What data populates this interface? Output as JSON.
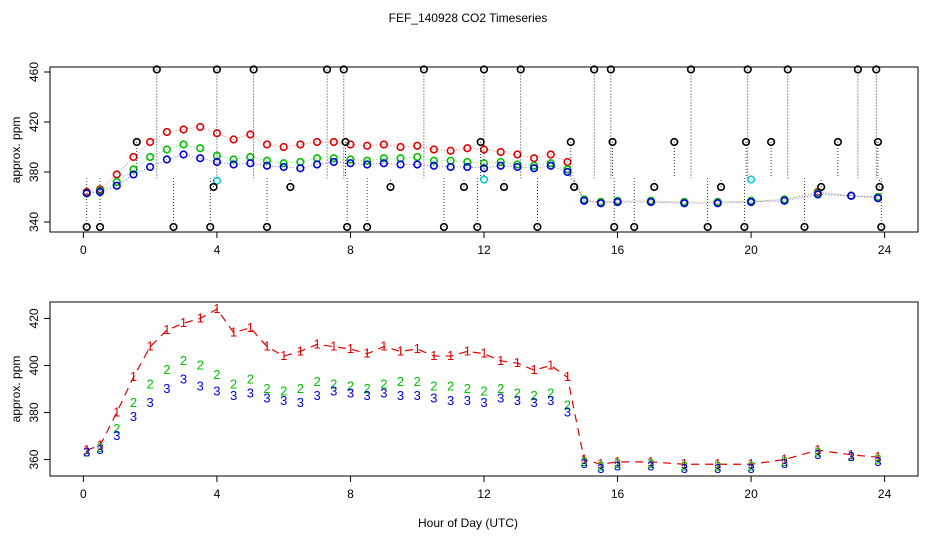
{
  "title": "FEF_140928  CO2 Timeseries",
  "xlabel": "Hour of Day (UTC)",
  "colors": {
    "black": "#000000",
    "red": "#e00000",
    "green": "#00c000",
    "blue": "#0000e0",
    "cyan": "#00d0d0",
    "grid_dots": "#000000"
  },
  "chart_data": [
    {
      "type": "scatter",
      "panel": "top",
      "ylabel": "approx. ppm",
      "xlim": [
        -1,
        25
      ],
      "ylim": [
        332,
        464
      ],
      "xticks": [
        0,
        4,
        8,
        12,
        16,
        20,
        24
      ],
      "yticks": [
        340,
        380,
        420,
        460
      ],
      "series": [
        {
          "color": "red",
          "x": [
            0.1,
            0.5,
            1.0,
            1.5,
            2.0,
            2.5,
            3.0,
            3.5,
            4.0,
            4.5,
            5.0,
            5.5,
            6.0,
            6.5,
            7.0,
            7.5,
            8.0,
            8.5,
            9.0,
            9.5,
            10.0,
            10.5,
            11.0,
            11.5,
            12.0,
            12.5,
            13.0,
            13.5,
            14.0,
            14.5,
            15.0,
            15.5,
            16.0,
            17.0,
            18.0,
            19.0,
            20.0,
            21.0,
            22.0,
            23.0,
            23.8
          ],
          "values": [
            364,
            366,
            378,
            392,
            404,
            412,
            414,
            416,
            411,
            406,
            410,
            402,
            400,
            402,
            404,
            404,
            402,
            401,
            402,
            400,
            401,
            398,
            397,
            399,
            398,
            396,
            394,
            391,
            394,
            388,
            357,
            356,
            356,
            356,
            356,
            356,
            356,
            358,
            364,
            361,
            360
          ]
        },
        {
          "color": "green",
          "x": [
            0.1,
            0.5,
            1.0,
            1.5,
            2.0,
            2.5,
            3.0,
            3.5,
            4.0,
            4.5,
            5.0,
            5.5,
            6.0,
            6.5,
            7.0,
            7.5,
            8.0,
            8.5,
            9.0,
            9.5,
            10.0,
            10.5,
            11.0,
            11.5,
            12.0,
            12.5,
            13.0,
            13.5,
            14.0,
            14.5,
            15.0,
            15.5,
            16.0,
            17.0,
            18.0,
            19.0,
            20.0,
            21.0,
            22.0,
            23.0,
            23.8
          ],
          "values": [
            363,
            365,
            372,
            382,
            392,
            398,
            402,
            399,
            393,
            390,
            392,
            389,
            387,
            388,
            391,
            391,
            390,
            389,
            391,
            391,
            392,
            389,
            389,
            388,
            387,
            388,
            386,
            385,
            387,
            382,
            358,
            356,
            357,
            357,
            356,
            356,
            357,
            358,
            363,
            361,
            360
          ]
        },
        {
          "color": "blue",
          "x": [
            0.1,
            0.5,
            1.0,
            1.5,
            2.0,
            2.5,
            3.0,
            3.5,
            4.0,
            4.5,
            5.0,
            5.5,
            6.0,
            6.5,
            7.0,
            7.5,
            8.0,
            8.5,
            9.0,
            9.5,
            10.0,
            10.5,
            11.0,
            11.5,
            12.0,
            12.5,
            13.0,
            13.5,
            14.0,
            14.5,
            15.0,
            15.5,
            16.0,
            17.0,
            18.0,
            19.0,
            20.0,
            21.0,
            22.0,
            23.0,
            23.8
          ],
          "values": [
            363,
            364,
            369,
            378,
            384,
            390,
            394,
            391,
            388,
            386,
            387,
            385,
            384,
            383,
            386,
            388,
            387,
            386,
            387,
            386,
            386,
            385,
            384,
            384,
            383,
            385,
            384,
            383,
            385,
            380,
            357,
            355,
            356,
            356,
            355,
            355,
            356,
            357,
            362,
            361,
            359
          ]
        },
        {
          "color": "cyan",
          "x": [
            4.0,
            12.0,
            20.0
          ],
          "values": [
            373,
            374,
            374
          ]
        },
        {
          "color": "black",
          "x": [
            0.1,
            0.5,
            1.6,
            2.2,
            2.7,
            3.8,
            3.9,
            4.0,
            5.1,
            5.5,
            6.2,
            7.3,
            7.8,
            7.85,
            7.9,
            8.5,
            9.2,
            10.2,
            10.8,
            11.4,
            11.8,
            11.9,
            12.0,
            12.6,
            13.1,
            13.6,
            14.6,
            14.7,
            15.3,
            15.8,
            15.85,
            15.9,
            16.5,
            17.1,
            17.7,
            18.2,
            18.7,
            19.1,
            19.8,
            19.85,
            19.9,
            20.6,
            21.1,
            21.6,
            22.1,
            22.6,
            23.2,
            23.75,
            23.8,
            23.85,
            23.9
          ],
          "values": [
            336,
            336,
            404,
            462,
            336,
            336,
            368,
            462,
            462,
            336,
            368,
            462,
            462,
            404,
            336,
            336,
            368,
            462,
            336,
            368,
            336,
            404,
            462,
            368,
            462,
            336,
            404,
            368,
            462,
            462,
            404,
            336,
            336,
            368,
            404,
            462,
            336,
            368,
            336,
            404,
            462,
            404,
            462,
            336,
            368,
            404,
            462,
            462,
            404,
            368,
            336
          ]
        }
      ]
    },
    {
      "type": "scatter",
      "panel": "bottom",
      "ylabel": "approx. ppm",
      "xlim": [
        -1,
        25
      ],
      "ylim": [
        353,
        427
      ],
      "xticks": [
        0,
        4,
        8,
        12,
        16,
        20,
        24
      ],
      "yticks": [
        360,
        380,
        400,
        420
      ],
      "series": [
        {
          "name": "1",
          "color": "red",
          "x": [
            0.1,
            0.5,
            1.0,
            1.5,
            2.0,
            2.5,
            3.0,
            3.5,
            4.0,
            4.5,
            5.0,
            5.5,
            6.0,
            6.5,
            7.0,
            7.5,
            8.0,
            8.5,
            9.0,
            9.5,
            10.0,
            10.5,
            11.0,
            11.5,
            12.0,
            12.5,
            13.0,
            13.5,
            14.0,
            14.5,
            15.0,
            15.5,
            16.0,
            17.0,
            18.0,
            19.0,
            20.0,
            21.0,
            22.0,
            23.0,
            23.8
          ],
          "values": [
            364,
            366,
            380,
            395,
            408,
            415,
            418,
            420,
            424,
            414,
            416,
            408,
            404,
            406,
            409,
            408,
            407,
            405,
            408,
            406,
            407,
            404,
            404,
            406,
            405,
            402,
            401,
            398,
            400,
            395,
            360,
            358,
            359,
            359,
            358,
            358,
            358,
            360,
            364,
            362,
            361
          ]
        },
        {
          "name": "2",
          "color": "green",
          "x": [
            0.1,
            0.5,
            1.0,
            1.5,
            2.0,
            2.5,
            3.0,
            3.5,
            4.0,
            4.5,
            5.0,
            5.5,
            6.0,
            6.5,
            7.0,
            7.5,
            8.0,
            8.5,
            9.0,
            9.5,
            10.0,
            10.5,
            11.0,
            11.5,
            12.0,
            12.5,
            13.0,
            13.5,
            14.0,
            14.5,
            15.0,
            15.5,
            16.0,
            17.0,
            18.0,
            19.0,
            20.0,
            21.0,
            22.0,
            23.0,
            23.8
          ],
          "values": [
            363,
            365,
            373,
            384,
            392,
            398,
            402,
            400,
            396,
            392,
            394,
            390,
            389,
            390,
            393,
            392,
            391,
            390,
            392,
            393,
            393,
            391,
            391,
            390,
            389,
            390,
            388,
            387,
            388,
            383,
            359,
            357,
            358,
            358,
            357,
            357,
            357,
            359,
            363,
            361,
            360
          ]
        },
        {
          "name": "3",
          "color": "blue",
          "x": [
            0.1,
            0.5,
            1.0,
            1.5,
            2.0,
            2.5,
            3.0,
            3.5,
            4.0,
            4.5,
            5.0,
            5.5,
            6.0,
            6.5,
            7.0,
            7.5,
            8.0,
            8.5,
            9.0,
            9.5,
            10.0,
            10.5,
            11.0,
            11.5,
            12.0,
            12.5,
            13.0,
            13.5,
            14.0,
            14.5,
            15.0,
            15.5,
            16.0,
            17.0,
            18.0,
            19.0,
            20.0,
            21.0,
            22.0,
            23.0,
            23.8
          ],
          "values": [
            363,
            364,
            370,
            378,
            384,
            390,
            394,
            391,
            389,
            387,
            388,
            386,
            385,
            384,
            387,
            389,
            388,
            387,
            388,
            387,
            387,
            386,
            385,
            385,
            384,
            386,
            385,
            384,
            385,
            380,
            358,
            356,
            357,
            357,
            356,
            356,
            356,
            358,
            362,
            361,
            359
          ]
        }
      ]
    }
  ]
}
